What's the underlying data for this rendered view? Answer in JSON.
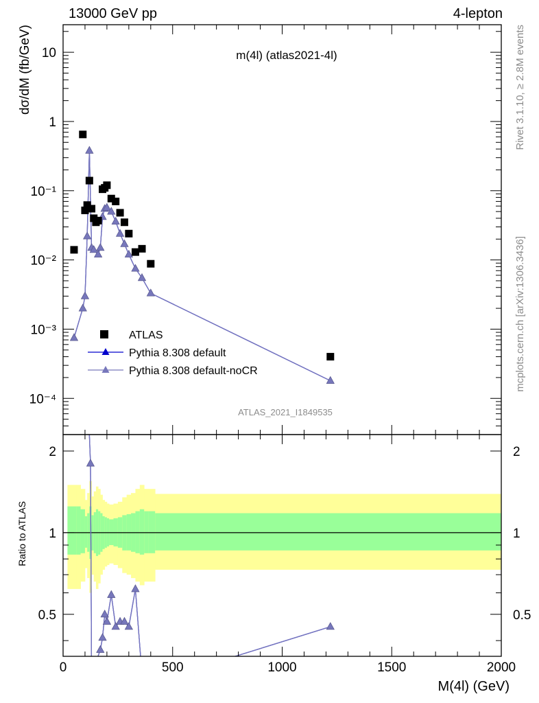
{
  "header": {
    "left": "13000 GeV pp",
    "right": "4-lepton",
    "plot_title": "m(4l) (atlas2021-4l)",
    "side_info_top": "Rivet 3.1.10, ≥ 2.8M events",
    "side_info_bottom": "mcplots.cern.ch [arXiv:1306.3436]",
    "analysis_tag": "ATLAS_2021_I1849535"
  },
  "colors": {
    "data": "#000000",
    "pythia_default": "#0000cc",
    "pythia_nocr": "#7777bb",
    "band_inner": "#99ff99",
    "band_outer": "#ffff99"
  },
  "chart_data": [
    {
      "type": "scatter",
      "panel": "main",
      "xlabel": "",
      "ylabel": "dσ/dM (fb/GeV)",
      "xlim": [
        0,
        2000
      ],
      "ylim": [
        3e-05,
        25
      ],
      "yscale": "log",
      "y_tick_labels": [
        "10⁻⁴",
        "10⁻³",
        "10⁻²",
        "10⁻¹",
        "1",
        "10"
      ],
      "legend_position": "lower-left",
      "series": [
        {
          "name": "ATLAS",
          "marker": "square",
          "x": [
            50,
            90,
            100,
            110,
            120,
            130,
            140,
            150,
            160,
            180,
            190,
            200,
            220,
            240,
            260,
            280,
            300,
            330,
            360,
            400,
            1220
          ],
          "y": [
            0.014,
            0.65,
            0.052,
            0.062,
            0.14,
            0.055,
            0.04,
            0.035,
            0.037,
            0.105,
            0.11,
            0.12,
            0.077,
            0.07,
            0.048,
            0.035,
            0.024,
            0.013,
            0.0145,
            0.0088,
            0.0004
          ]
        },
        {
          "name": "Pythia 8.308 default",
          "marker": "triangle",
          "x": [
            50,
            90,
            100,
            110,
            120,
            130,
            140,
            160,
            170,
            180,
            190,
            200,
            220,
            240,
            260,
            280,
            300,
            330,
            360,
            400,
            1220
          ],
          "y": [
            0.00075,
            0.002,
            0.003,
            0.022,
            0.38,
            0.015,
            0.014,
            0.012,
            0.015,
            0.042,
            0.055,
            0.057,
            0.05,
            0.036,
            0.024,
            0.017,
            0.012,
            0.0075,
            0.0055,
            0.0033,
            0.00018
          ]
        },
        {
          "name": "Pythia 8.308 default-noCR",
          "marker": "triangle",
          "x": [
            50,
            90,
            100,
            110,
            120,
            130,
            140,
            160,
            170,
            180,
            190,
            200,
            220,
            240,
            260,
            280,
            300,
            330,
            360,
            400,
            1220
          ],
          "y": [
            0.00075,
            0.002,
            0.003,
            0.022,
            0.38,
            0.015,
            0.014,
            0.012,
            0.015,
            0.042,
            0.055,
            0.057,
            0.05,
            0.036,
            0.024,
            0.017,
            0.012,
            0.0075,
            0.0055,
            0.0033,
            0.00018
          ]
        }
      ]
    },
    {
      "type": "line",
      "panel": "ratio",
      "xlabel": "M(4l) (GeV)",
      "ylabel": "Ratio to ATLAS",
      "xlim": [
        0,
        2000
      ],
      "ylim": [
        0.35,
        2.3
      ],
      "yscale": "log",
      "x_tick_labels": [
        "0",
        "500",
        "1000",
        "1500",
        "2000"
      ],
      "y_tick_labels": [
        "0.5",
        "1",
        "2"
      ],
      "reference_line": 1,
      "series": [
        {
          "name": "Pythia 8.308 default",
          "x": [
            120,
            125,
            130,
            170,
            180,
            190,
            200,
            220,
            240,
            260,
            280,
            300,
            330,
            360,
            400,
            1220
          ],
          "y": [
            2.3,
            1.8,
            0.3,
            0.37,
            0.41,
            0.5,
            0.47,
            0.59,
            0.45,
            0.47,
            0.47,
            0.45,
            0.62,
            0.3,
            0.28,
            0.45
          ]
        },
        {
          "name": "Pythia 8.308 default-noCR",
          "x": [
            120,
            125,
            130,
            170,
            180,
            190,
            200,
            220,
            240,
            260,
            280,
            300,
            330,
            360,
            400,
            1220
          ],
          "y": [
            2.3,
            1.8,
            0.3,
            0.37,
            0.41,
            0.5,
            0.47,
            0.59,
            0.45,
            0.47,
            0.47,
            0.45,
            0.62,
            0.3,
            0.28,
            0.45
          ]
        }
      ],
      "uncertainty_bands": {
        "x_edges": [
          20,
          60,
          80,
          100,
          110,
          120,
          130,
          140,
          150,
          160,
          170,
          180,
          190,
          200,
          210,
          230,
          250,
          270,
          290,
          310,
          330,
          350,
          370,
          390,
          420,
          2000
        ],
        "inner_low": [
          0.83,
          0.83,
          0.84,
          0.88,
          0.85,
          0.8,
          0.86,
          0.84,
          0.82,
          0.83,
          0.85,
          0.87,
          0.88,
          0.89,
          0.9,
          0.89,
          0.88,
          0.86,
          0.86,
          0.85,
          0.84,
          0.83,
          0.84,
          0.84,
          0.86
        ],
        "inner_high": [
          1.25,
          1.25,
          1.22,
          1.15,
          1.18,
          1.25,
          1.16,
          1.19,
          1.22,
          1.2,
          1.18,
          1.15,
          1.14,
          1.13,
          1.12,
          1.13,
          1.14,
          1.16,
          1.17,
          1.18,
          1.2,
          1.22,
          1.2,
          1.2,
          1.18
        ],
        "outer_low": [
          0.62,
          0.62,
          0.66,
          0.74,
          0.68,
          0.6,
          0.7,
          0.66,
          0.62,
          0.65,
          0.7,
          0.73,
          0.75,
          0.76,
          0.77,
          0.76,
          0.74,
          0.71,
          0.7,
          0.68,
          0.66,
          0.64,
          0.66,
          0.66,
          0.73
        ],
        "outer_high": [
          1.5,
          1.5,
          1.45,
          1.32,
          1.4,
          1.55,
          1.36,
          1.42,
          1.48,
          1.45,
          1.38,
          1.32,
          1.3,
          1.28,
          1.27,
          1.28,
          1.3,
          1.35,
          1.38,
          1.4,
          1.45,
          1.5,
          1.45,
          1.45,
          1.39
        ]
      }
    }
  ]
}
